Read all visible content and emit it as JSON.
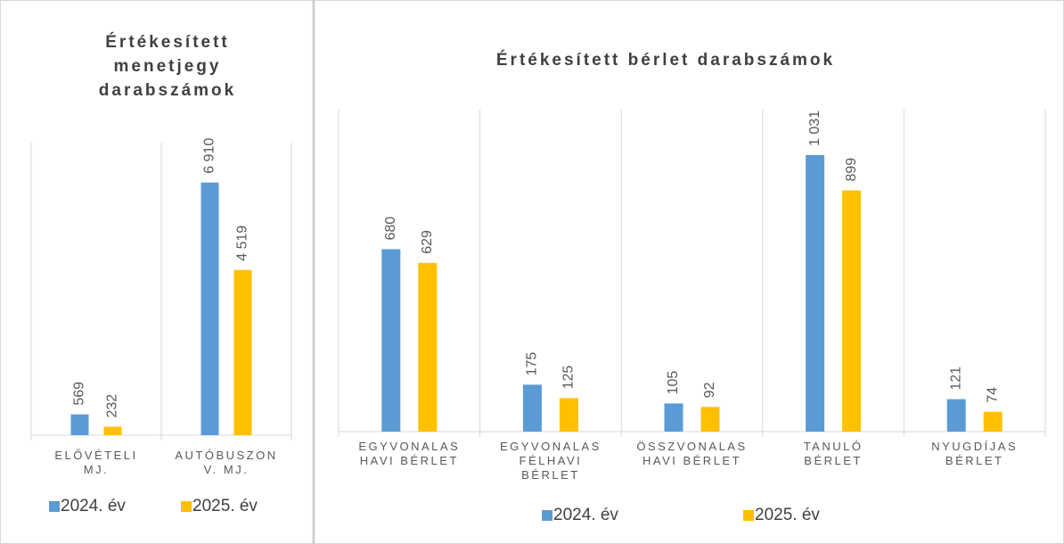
{
  "chart_data": [
    {
      "type": "bar",
      "title": "Értékesített\nmenetjegy\ndarabszámok",
      "categories": [
        "ELŐVÉTELI\nMJ.",
        "AUTÓBUSZON\nV. MJ."
      ],
      "series": [
        {
          "name": "2024. év",
          "color": "#5b9bd5",
          "values": [
            569,
            6910
          ],
          "value_labels": [
            "569",
            "6 910"
          ]
        },
        {
          "name": "2025. év",
          "color": "#ffc000",
          "values": [
            232,
            4519
          ],
          "value_labels": [
            "232",
            "4 519"
          ]
        }
      ],
      "ylim": [
        0,
        8000
      ]
    },
    {
      "type": "bar",
      "title": "Értékesített bérlet darabszámok",
      "categories": [
        "EGYVONALAS\nHAVI  BÉRLET",
        "EGYVONALAS\nFÉLHAVI\nBÉRLET",
        "ÖSSZVONALAS\nHAVI BÉRLET",
        "TANULÓ\nBÉRLET",
        "NYUGDÍJAS\nBÉRLET"
      ],
      "series": [
        {
          "name": "2024. év",
          "color": "#5b9bd5",
          "values": [
            680,
            175,
            105,
            1031,
            121
          ],
          "value_labels": [
            "680",
            "175",
            "105",
            "1 031",
            "121"
          ]
        },
        {
          "name": "2025. év",
          "color": "#ffc000",
          "values": [
            629,
            125,
            92,
            899,
            74
          ],
          "value_labels": [
            "629",
            "125",
            "92",
            "899",
            "74"
          ]
        }
      ],
      "ylim": [
        0,
        1200
      ]
    }
  ]
}
